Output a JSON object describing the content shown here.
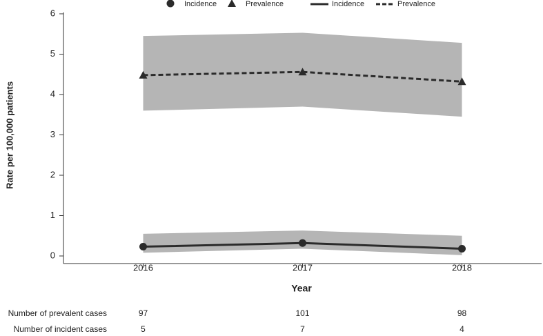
{
  "chart_data": {
    "type": "line",
    "x_label": "Year",
    "y_label": "Rate per 100,000 patients",
    "categories": [
      "2016",
      "2017",
      "2018"
    ],
    "ylim": [
      0,
      6
    ],
    "yticks": [
      0,
      1,
      2,
      3,
      4,
      5,
      6
    ],
    "band_color": "#b5b5b5",
    "series": [
      {
        "name": "Incidence",
        "color": "#2b2b2b",
        "line_style": "solid",
        "marker": "circle",
        "values": [
          0.23,
          0.32,
          0.18
        ],
        "lower": [
          0.08,
          0.18,
          0.02
        ],
        "upper": [
          0.55,
          0.63,
          0.5
        ]
      },
      {
        "name": "Prevalence",
        "color": "#2b2b2b",
        "line_style": "dashed",
        "marker": "triangle",
        "values": [
          4.48,
          4.56,
          4.32
        ],
        "lower": [
          3.6,
          3.7,
          3.45
        ],
        "upper": [
          5.45,
          5.53,
          5.28
        ]
      }
    ],
    "table": {
      "rows": [
        {
          "label": "Number of prevalent cases",
          "values": [
            97,
            101,
            98
          ]
        },
        {
          "label": "Number of incident cases",
          "values": [
            5,
            7,
            4
          ]
        }
      ]
    }
  }
}
